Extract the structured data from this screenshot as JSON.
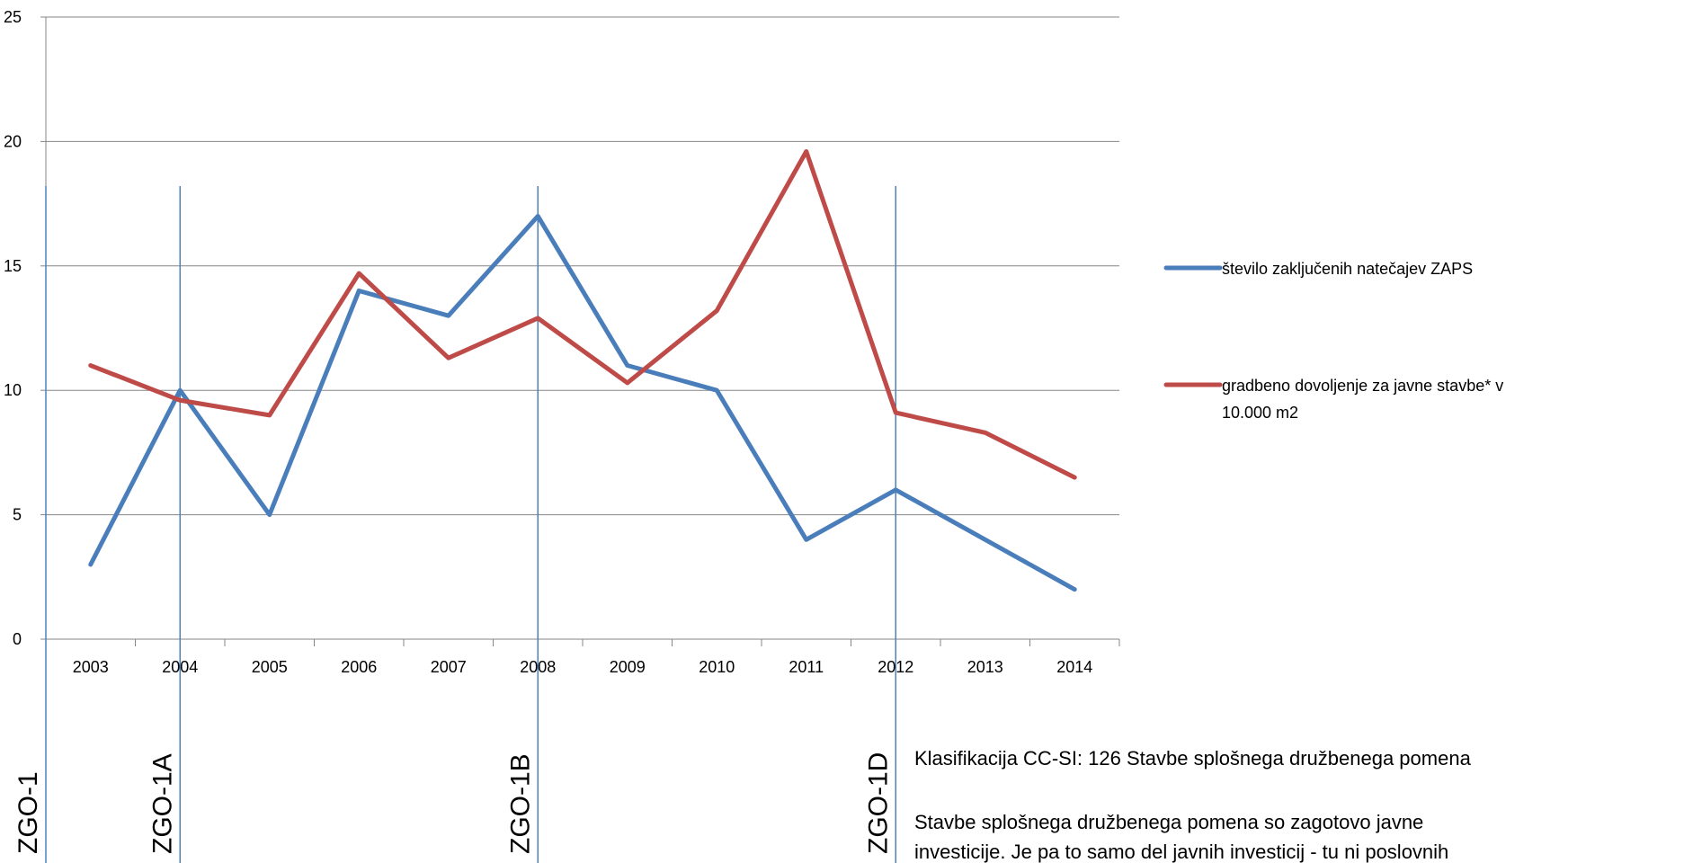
{
  "chart_data": {
    "type": "line",
    "title": "",
    "xlabel": "",
    "ylabel": "",
    "ylim": [
      0,
      25
    ],
    "yticks": [
      0,
      5,
      10,
      15,
      20,
      25
    ],
    "categories": [
      "2003",
      "2004",
      "2005",
      "2006",
      "2007",
      "2008",
      "2009",
      "2010",
      "2011",
      "2012",
      "2013",
      "2014"
    ],
    "grid": "horizontal",
    "legend_position": "right",
    "series": [
      {
        "name": "število zaključenih natečajev ZAPS",
        "color": "#4a7ebb",
        "values": [
          3,
          10,
          5,
          14,
          13,
          17,
          11,
          10,
          4,
          6,
          4,
          2
        ]
      },
      {
        "name": "gradbeno dovoljenje za javne stavbe* v 10.000 m2",
        "color": "#be4b48",
        "values": [
          11.0,
          9.6,
          9.0,
          14.7,
          11.3,
          12.9,
          10.3,
          13.2,
          19.6,
          9.1,
          8.3,
          6.5
        ]
      }
    ],
    "markers": [
      {
        "label": "ZGO-1",
        "year": "2003",
        "offset": -0.5
      },
      {
        "label": "ZGO-1A",
        "year": "2004",
        "offset": 0
      },
      {
        "label": "ZGO-1B",
        "year": "2008",
        "offset": 0
      },
      {
        "label": "ZGO-1D",
        "year": "2012",
        "offset": 0
      }
    ],
    "marker_color": "#4f81bd"
  },
  "notes": {
    "classification": "Klasifikacija CC-SI: 126 Stavbe splošnega družbenega pomena",
    "line1": "Stavbe splošnega družbenega pomena so zagotovo javne",
    "line2": "investicije. Je pa to samo del javnih investicij - tu ni poslovnih"
  }
}
